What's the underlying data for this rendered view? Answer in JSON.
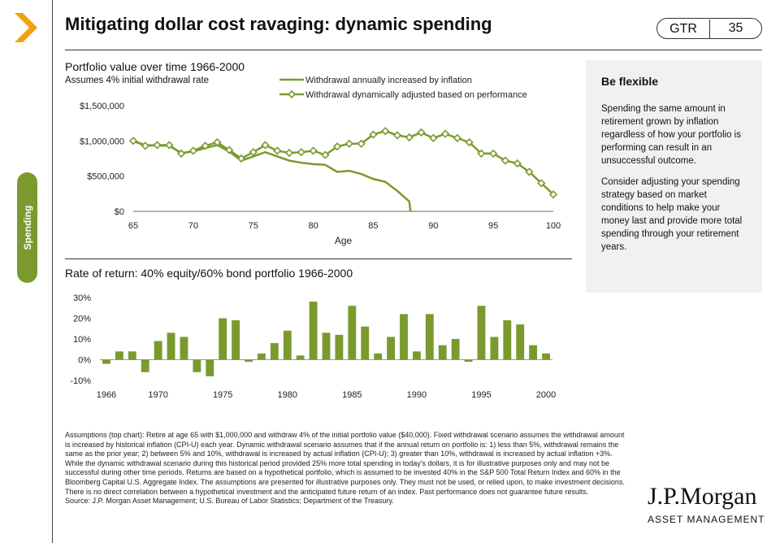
{
  "header": {
    "title": "Mitigating dollar cost ravaging: dynamic spending",
    "gtr_label": "GTR",
    "page_number": "35"
  },
  "section_tab": {
    "label": "Spending"
  },
  "accent_color": "#7a9a2e",
  "chart_data": [
    {
      "type": "line",
      "title": "Portfolio value over time 1966-2000",
      "subtitle": "Assumes 4% initial withdrawal rate",
      "xlabel": "Age",
      "ylabel": "",
      "xlim": [
        65,
        100
      ],
      "ylim": [
        0,
        1500000
      ],
      "x_ticks": [
        "65",
        "70",
        "75",
        "80",
        "85",
        "90",
        "95",
        "100"
      ],
      "y_ticks": [
        "$0",
        "$500,000",
        "$1,000,000",
        "$1,500,000"
      ],
      "legend_position": "top-right",
      "series": [
        {
          "name": "Withdrawal annually increased by inflation",
          "marker": "none",
          "x": [
            65,
            66,
            67,
            68,
            69,
            70,
            71,
            72,
            73,
            74,
            75,
            76,
            77,
            78,
            79,
            80,
            81,
            82,
            83,
            84,
            85,
            86,
            87,
            88
          ],
          "values": [
            1000000,
            940000,
            935000,
            930000,
            830000,
            850000,
            900000,
            940000,
            850000,
            720000,
            780000,
            840000,
            780000,
            720000,
            690000,
            670000,
            660000,
            560000,
            575000,
            530000,
            460000,
            420000,
            290000,
            140000
          ]
        },
        {
          "name": "Withdrawal dynamically adjusted based on performance",
          "marker": "diamond",
          "x": [
            65,
            66,
            67,
            68,
            69,
            70,
            71,
            72,
            73,
            74,
            75,
            76,
            77,
            78,
            79,
            80,
            81,
            82,
            83,
            84,
            85,
            86,
            87,
            88,
            89,
            90,
            91,
            92,
            93,
            94,
            95,
            96,
            97,
            98,
            99,
            100
          ],
          "values": [
            1000000,
            930000,
            940000,
            940000,
            820000,
            860000,
            930000,
            980000,
            870000,
            750000,
            840000,
            940000,
            860000,
            830000,
            840000,
            860000,
            800000,
            920000,
            960000,
            960000,
            1090000,
            1140000,
            1080000,
            1050000,
            1120000,
            1040000,
            1100000,
            1040000,
            980000,
            820000,
            820000,
            720000,
            680000,
            560000,
            400000,
            240000
          ]
        }
      ]
    },
    {
      "type": "bar",
      "title": "Rate of return: 40% equity/60% bond portfolio 1966-2000",
      "xlabel": "",
      "ylabel": "",
      "ylim": [
        -10,
        30
      ],
      "y_ticks": [
        "30%",
        "20%",
        "10%",
        "0%",
        "-10%"
      ],
      "x_ticks": [
        "1966",
        "1970",
        "1975",
        "1980",
        "1985",
        "1990",
        "1995",
        "2000"
      ],
      "categories": [
        "1966",
        "1967",
        "1968",
        "1969",
        "1970",
        "1971",
        "1972",
        "1973",
        "1974",
        "1975",
        "1976",
        "1977",
        "1978",
        "1979",
        "1980",
        "1981",
        "1982",
        "1983",
        "1984",
        "1985",
        "1986",
        "1987",
        "1988",
        "1989",
        "1990",
        "1991",
        "1992",
        "1993",
        "1994",
        "1995",
        "1996",
        "1997",
        "1998",
        "1999",
        "2000"
      ],
      "values": [
        -2,
        4,
        4,
        -6,
        9,
        13,
        11,
        -6,
        -8,
        20,
        19,
        -1,
        3,
        8,
        14,
        2,
        28,
        13,
        12,
        26,
        16,
        3,
        11,
        22,
        4,
        22,
        7,
        10,
        -1,
        26,
        11,
        19,
        17,
        7,
        3
      ]
    }
  ],
  "sidebar": {
    "heading": "Be flexible",
    "paragraphs": [
      "Spending the same amount in retirement grown by inflation regardless of how your portfolio is performing can result in an unsuccessful outcome.",
      "Consider adjusting your spending strategy based on market conditions to help make your money last and provide more total spending through your retirement years."
    ]
  },
  "footnote": {
    "text": "Assumptions (top chart): Retire at age 65 with $1,000,000 and withdraw 4% of the initial portfolio value ($40,000). Fixed withdrawal scenario assumes the withdrawal amount is increased by historical inflation (CPI-U) each year. Dynamic withdrawal scenario assumes that if the annual return on portfolio is: 1) less than 5%, withdrawal remains the same as the prior year; 2) between 5% and 10%, withdrawal is increased by actual inflation (CPI-U); 3) greater than 10%, withdrawal is increased by actual inflation +3%. While the dynamic withdrawal scenario during this historical period provided 25% more total spending in today's dollars, it is for illustrative purposes only and may not be successful during other time periods. Returns are based on a hypothetical portfolio, which is assumed to be invested 40% in the S&P 500 Total Return Index and 60% in the Bloomberg Capital U.S. Aggregate Index. The assumptions are presented for illustrative purposes only. They must not be used, or relied upon, to make investment decisions. There is no direct correlation between a hypothetical investment and the anticipated future return of an index. Past performance does not guarantee future results.",
    "source": "Source: J.P. Morgan Asset Management; U.S. Bureau of Labor Statistics; Department of the Treasury."
  },
  "logo": {
    "brand": "J.P.Morgan",
    "unit": "ASSET MANAGEMENT"
  }
}
